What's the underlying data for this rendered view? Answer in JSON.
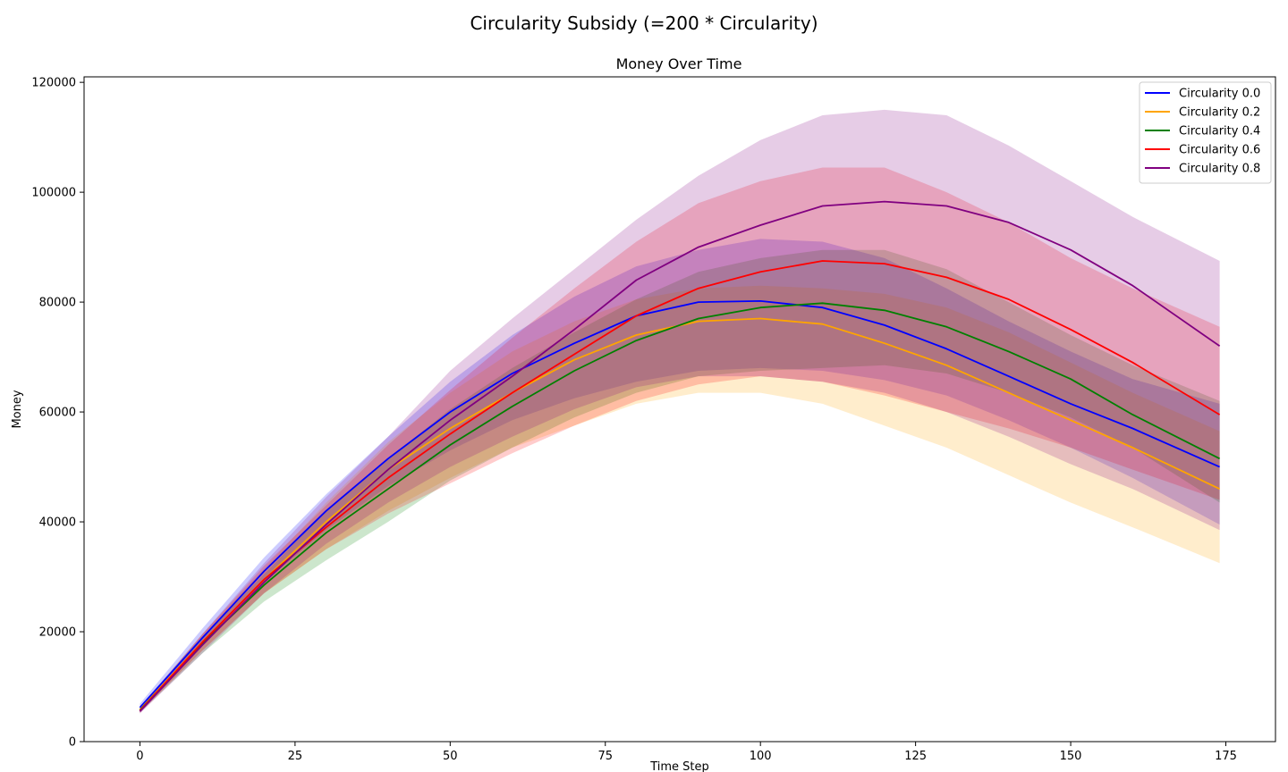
{
  "figure": {
    "suptitle": "Circularity Subsidy (=200 * Circularity)"
  },
  "chart_data": {
    "type": "line",
    "title": "Money Over Time",
    "xlabel": "Time Step",
    "ylabel": "Money",
    "xlim": [
      -9,
      183
    ],
    "ylim": [
      0,
      121000
    ],
    "xticks": [
      0,
      25,
      50,
      75,
      100,
      125,
      150,
      175
    ],
    "yticks": [
      0,
      20000,
      40000,
      60000,
      80000,
      100000,
      120000
    ],
    "grid": false,
    "legend_position": "top-right",
    "x": [
      0,
      10,
      20,
      30,
      40,
      50,
      60,
      70,
      80,
      90,
      100,
      110,
      120,
      130,
      140,
      150,
      160,
      174
    ],
    "series": [
      {
        "name": "Circularity 0.0",
        "color": "#0000ff",
        "values": [
          6200,
          18800,
          31000,
          42000,
          51500,
          60000,
          67000,
          72500,
          77500,
          80000,
          80200,
          79000,
          75800,
          71500,
          66500,
          61500,
          57000,
          50000
        ],
        "band_lower": [
          5800,
          17500,
          29000,
          38500,
          46500,
          53000,
          58500,
          62500,
          65500,
          67500,
          68000,
          67500,
          65800,
          63000,
          58500,
          53500,
          48000,
          39500
        ],
        "band_upper": [
          6900,
          20500,
          33500,
          45000,
          55500,
          65500,
          74000,
          81000,
          86500,
          89500,
          91500,
          91000,
          88000,
          82500,
          76500,
          71000,
          66000,
          61500
        ]
      },
      {
        "name": "Circularity 0.2",
        "color": "#ffa500",
        "values": [
          5800,
          18000,
          29500,
          40000,
          49500,
          57000,
          63500,
          69500,
          74000,
          76500,
          77000,
          76000,
          72500,
          68500,
          63500,
          58500,
          53500,
          46000
        ],
        "band_lower": [
          5400,
          16500,
          27000,
          35000,
          42000,
          48000,
          53500,
          57500,
          61500,
          63500,
          63500,
          61500,
          57500,
          53500,
          48500,
          43500,
          39000,
          32500
        ],
        "band_upper": [
          6300,
          19500,
          31500,
          43500,
          54500,
          63500,
          71000,
          76500,
          80500,
          82500,
          83000,
          82500,
          81500,
          79000,
          74500,
          69000,
          63500,
          56500
        ]
      },
      {
        "name": "Circularity 0.4",
        "color": "#008000",
        "values": [
          5700,
          17800,
          28500,
          38000,
          46000,
          54000,
          61000,
          67500,
          73000,
          77000,
          79000,
          79800,
          78500,
          75500,
          71000,
          66000,
          59500,
          51500
        ],
        "band_lower": [
          5300,
          16000,
          25500,
          33000,
          40000,
          47500,
          53500,
          59000,
          63500,
          66500,
          67500,
          68000,
          68500,
          67000,
          63500,
          59000,
          53500,
          43500
        ],
        "band_upper": [
          6100,
          19000,
          30500,
          42000,
          51500,
          60500,
          68000,
          74500,
          80500,
          85500,
          88000,
          89500,
          89500,
          86000,
          80000,
          74000,
          68500,
          62000
        ]
      },
      {
        "name": "Circularity 0.6",
        "color": "#ff0000",
        "values": [
          5600,
          18000,
          29500,
          39000,
          48000,
          56000,
          63500,
          70500,
          77500,
          82500,
          85500,
          87500,
          87000,
          84500,
          80500,
          75000,
          69000,
          59500
        ],
        "band_lower": [
          5200,
          16500,
          27000,
          35000,
          41500,
          47000,
          52500,
          57500,
          62000,
          65000,
          66500,
          65500,
          63000,
          60000,
          57000,
          53500,
          49500,
          44000
        ],
        "band_upper": [
          6000,
          19500,
          32000,
          43000,
          54000,
          64000,
          73500,
          82500,
          91000,
          98000,
          102000,
          104500,
          104500,
          100000,
          94500,
          88000,
          82500,
          75500
        ]
      },
      {
        "name": "Circularity 0.8",
        "color": "#800080",
        "values": [
          5500,
          17500,
          29000,
          39500,
          49500,
          58500,
          66500,
          75000,
          84000,
          90000,
          94000,
          97500,
          98300,
          97500,
          94500,
          89500,
          83000,
          72000
        ],
        "band_lower": [
          5100,
          16000,
          27000,
          36000,
          43500,
          50000,
          55500,
          60500,
          64500,
          66500,
          66500,
          65500,
          63500,
          60000,
          55500,
          50500,
          46000,
          38500
        ],
        "band_upper": [
          6200,
          19500,
          32500,
          44500,
          55500,
          67500,
          77000,
          86000,
          95000,
          103000,
          109500,
          114000,
          115000,
          114000,
          108500,
          102000,
          95500,
          87500
        ]
      }
    ]
  }
}
